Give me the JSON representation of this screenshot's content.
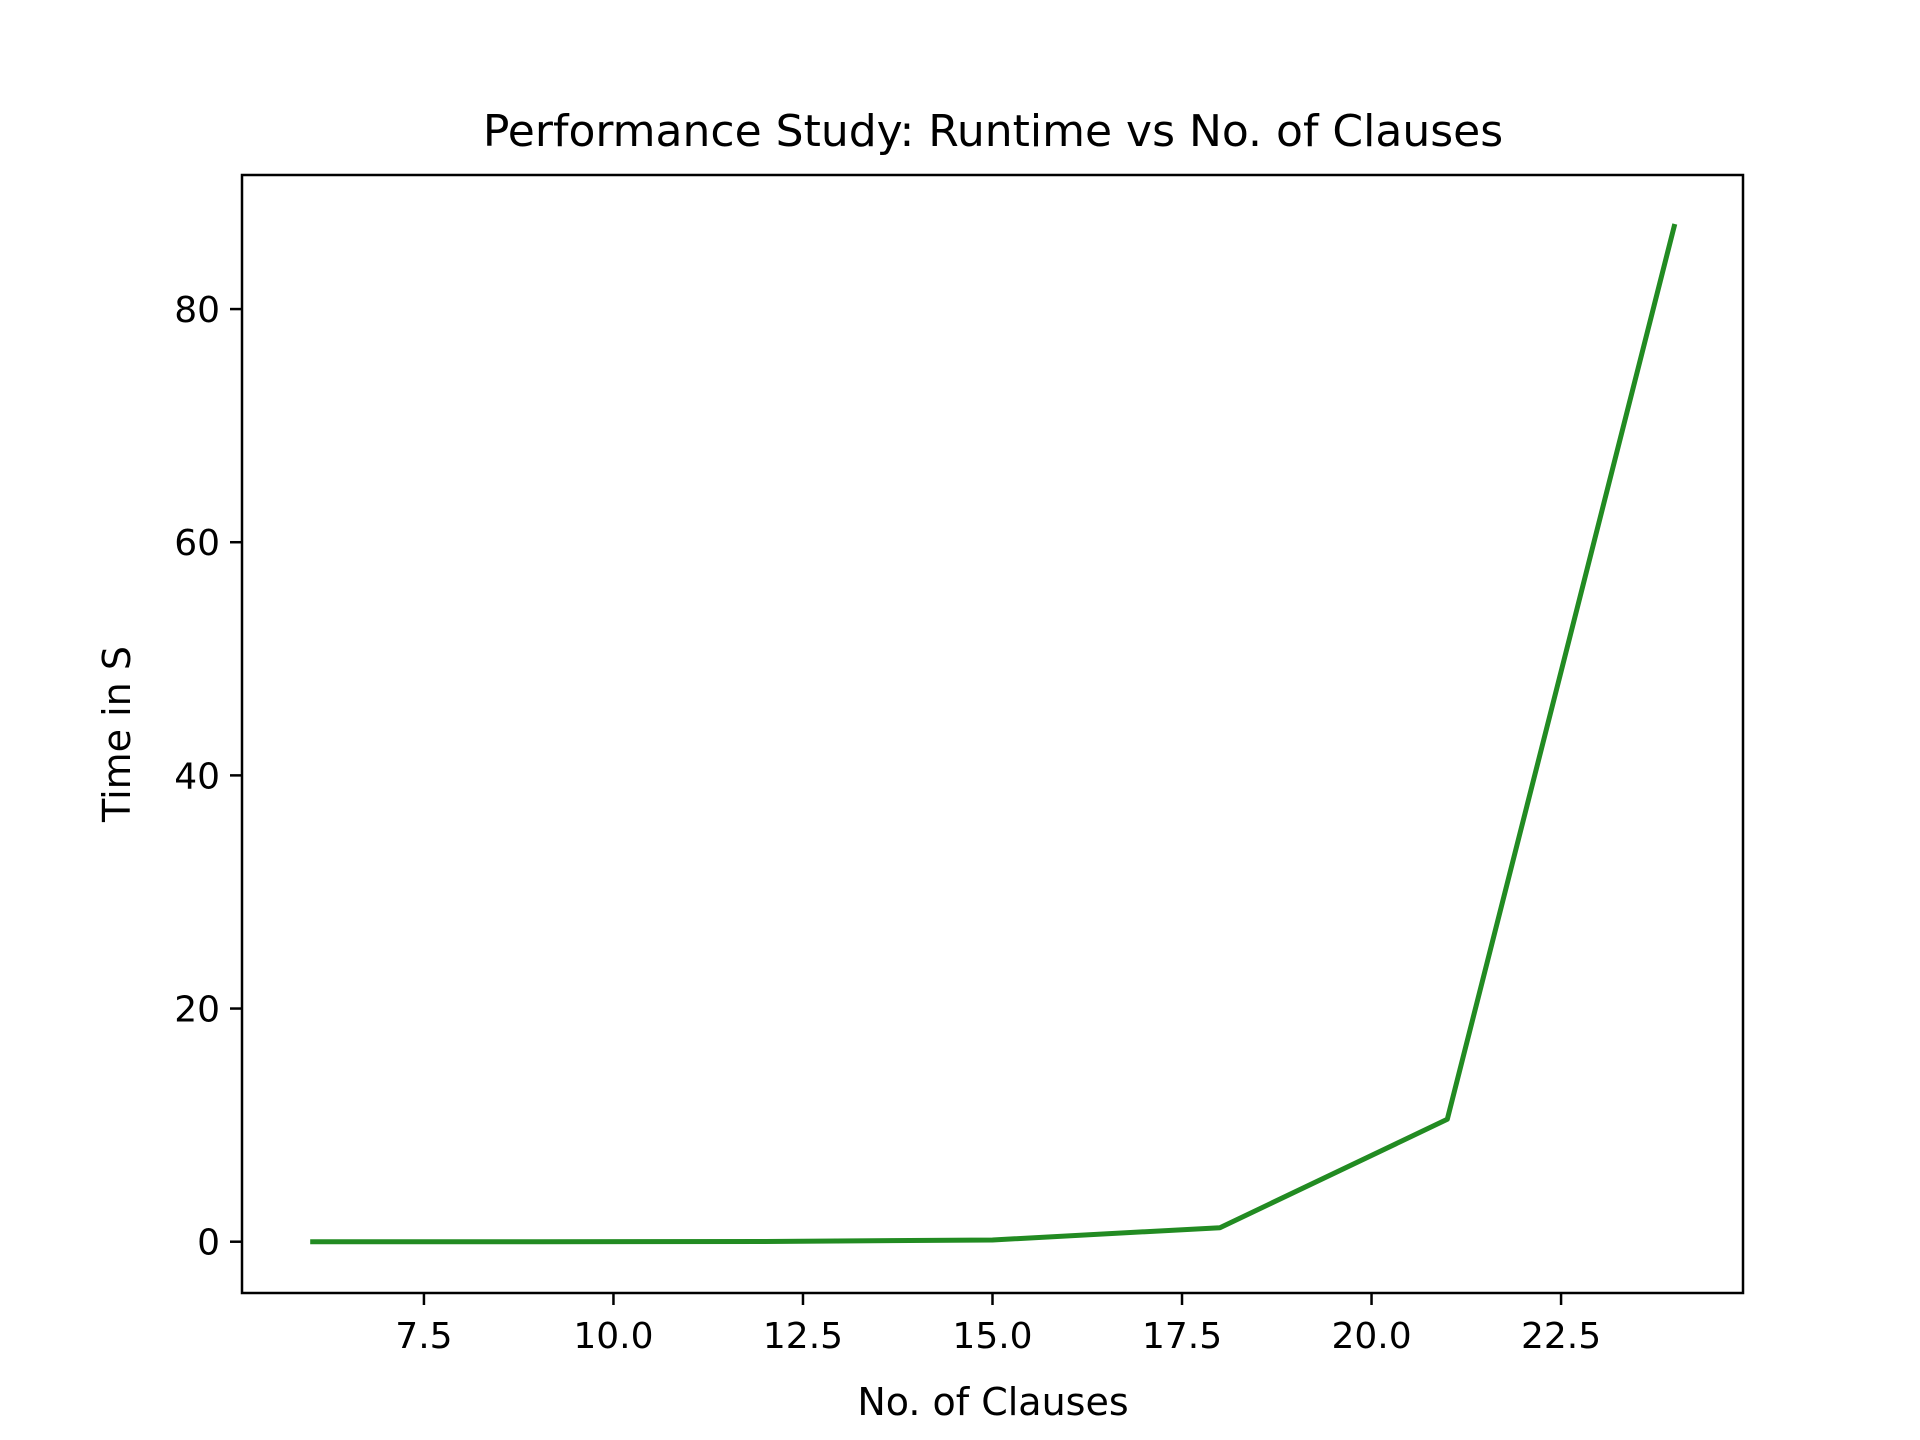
{
  "chart_data": {
    "type": "line",
    "title": "Performance Study: Runtime vs No. of Clauses",
    "xlabel": "No. of Clauses",
    "ylabel": "Time in S",
    "xlim": [
      5.1,
      24.9
    ],
    "ylim": [
      -4.4,
      91.5
    ],
    "xticks": [
      7.5,
      10.0,
      12.5,
      15.0,
      17.5,
      20.0,
      22.5
    ],
    "xtick_labels": [
      "7.5",
      "10.0",
      "12.5",
      "15.0",
      "17.5",
      "20.0",
      "22.5"
    ],
    "yticks": [
      0,
      20,
      40,
      60,
      80
    ],
    "ytick_labels": [
      "0",
      "20",
      "40",
      "60",
      "80"
    ],
    "grid": false,
    "series": [
      {
        "color": "#228B22",
        "x": [
          6,
          9,
          12,
          15,
          18,
          21,
          24
        ],
        "y": [
          0.0,
          0.0,
          0.02,
          0.15,
          1.2,
          10.5,
          87.3
        ]
      }
    ]
  }
}
